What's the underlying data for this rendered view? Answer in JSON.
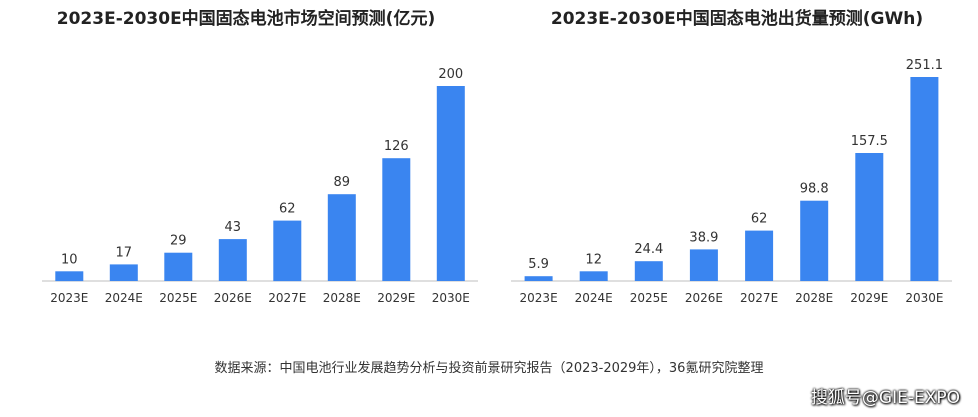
{
  "colors": {
    "bar": "#3a85f0",
    "axis": "#bfbfbf"
  },
  "chart_data": [
    {
      "type": "bar",
      "title": "2023E-2030E中国固态电池市场空间预测(亿元)",
      "categories": [
        "2023E",
        "2024E",
        "2025E",
        "2026E",
        "2027E",
        "2028E",
        "2029E",
        "2030E"
      ],
      "values": [
        10,
        17,
        29,
        43,
        62,
        89,
        126,
        200
      ],
      "value_labels": [
        "10",
        "17",
        "29",
        "43",
        "62",
        "89",
        "126",
        "200"
      ],
      "ylim": [
        0,
        200
      ]
    },
    {
      "type": "bar",
      "title": "2023E-2030E中国固态电池出货量预测(GWh)",
      "categories": [
        "2023E",
        "2024E",
        "2025E",
        "2026E",
        "2027E",
        "2028E",
        "2029E",
        "2030E"
      ],
      "values": [
        5.9,
        12,
        24.4,
        38.9,
        62,
        98.8,
        157.5,
        251.1
      ],
      "value_labels": [
        "5.9",
        "12",
        "24.4",
        "38.9",
        "62",
        "98.8",
        "157.5",
        "251.1"
      ],
      "ylim": [
        0,
        251.1
      ]
    }
  ],
  "source_text": "数据来源：中国电池行业发展趋势分析与投资前景研究报告（2023-2029年），36氪研究院整理",
  "watermark": "搜狐号@GIE-EXPO"
}
